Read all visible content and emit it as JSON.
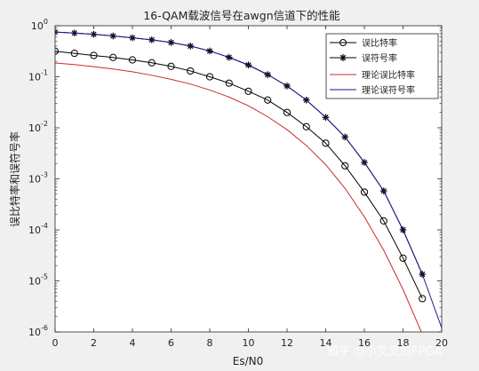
{
  "chart_data": {
    "type": "line",
    "title": "16-QAM载波信号在awgn信道下的性能",
    "xlabel": "Es/N0",
    "ylabel": "误比特率和误符号率",
    "xlim": [
      0,
      20
    ],
    "ylim": [
      1e-06,
      1
    ],
    "yscale": "log",
    "grid": false,
    "legend_position": "top-right",
    "x_ticks": [
      "0",
      "2",
      "4",
      "6",
      "8",
      "10",
      "12",
      "14",
      "16",
      "18",
      "20"
    ],
    "y_ticks": [
      {
        "base": "10",
        "exp": "0"
      },
      {
        "base": "10",
        "exp": "-1"
      },
      {
        "base": "10",
        "exp": "-2"
      },
      {
        "base": "10",
        "exp": "-3"
      },
      {
        "base": "10",
        "exp": "-4"
      },
      {
        "base": "10",
        "exp": "-5"
      },
      {
        "base": "10",
        "exp": "-6"
      }
    ],
    "series": [
      {
        "name": "误比特率",
        "color": "#000000",
        "marker": "circle",
        "x": [
          0,
          1,
          2,
          3,
          4,
          5,
          6,
          7,
          8,
          9,
          10,
          11,
          12,
          13,
          14,
          15,
          16,
          17,
          18,
          19
        ],
        "y": [
          0.316,
          0.288,
          0.262,
          0.239,
          0.214,
          0.188,
          0.16,
          0.13,
          0.1,
          0.075,
          0.052,
          0.035,
          0.02,
          0.0105,
          0.005,
          0.0018,
          0.00055,
          0.00015,
          2.8e-05,
          4.5e-06
        ]
      },
      {
        "name": "误符号率",
        "color": "#000000",
        "marker": "star",
        "x": [
          0,
          1,
          2,
          3,
          4,
          5,
          6,
          7,
          8,
          9,
          10,
          11,
          12,
          13,
          14,
          15,
          16,
          17,
          18,
          19
        ],
        "y": [
          0.75,
          0.72,
          0.68,
          0.63,
          0.58,
          0.53,
          0.47,
          0.4,
          0.32,
          0.24,
          0.17,
          0.11,
          0.066,
          0.035,
          0.016,
          0.0066,
          0.0021,
          0.00058,
          0.0001,
          1.35e-05
        ]
      },
      {
        "name": "理论误比特率",
        "color": "#cc2b2b",
        "marker": "none",
        "x": [
          0,
          1,
          2,
          3,
          4,
          5,
          6,
          7,
          8,
          9,
          10,
          11,
          12,
          13,
          14,
          15,
          16,
          17,
          18,
          19,
          20
        ],
        "y": [
          0.186,
          0.173,
          0.158,
          0.142,
          0.125,
          0.107,
          0.089,
          0.072,
          0.055,
          0.04,
          0.027,
          0.0165,
          0.0092,
          0.0045,
          0.0019,
          0.00065,
          0.00018,
          4e-05,
          6.8e-06,
          9e-07,
          1.1e-07
        ]
      },
      {
        "name": "理论误符号率",
        "color": "#1a1a8c",
        "marker": "none",
        "x": [
          0,
          1,
          2,
          3,
          4,
          5,
          6,
          7,
          8,
          9,
          10,
          11,
          12,
          13,
          14,
          15,
          16,
          17,
          18,
          19,
          20
        ],
        "y": [
          0.75,
          0.72,
          0.68,
          0.63,
          0.58,
          0.53,
          0.47,
          0.4,
          0.32,
          0.24,
          0.17,
          0.11,
          0.066,
          0.035,
          0.016,
          0.0066,
          0.0021,
          0.00058,
          0.0001,
          1.35e-05,
          1.2e-06
        ]
      }
    ]
  },
  "watermark": "知乎 @小叉叉的FPGA"
}
